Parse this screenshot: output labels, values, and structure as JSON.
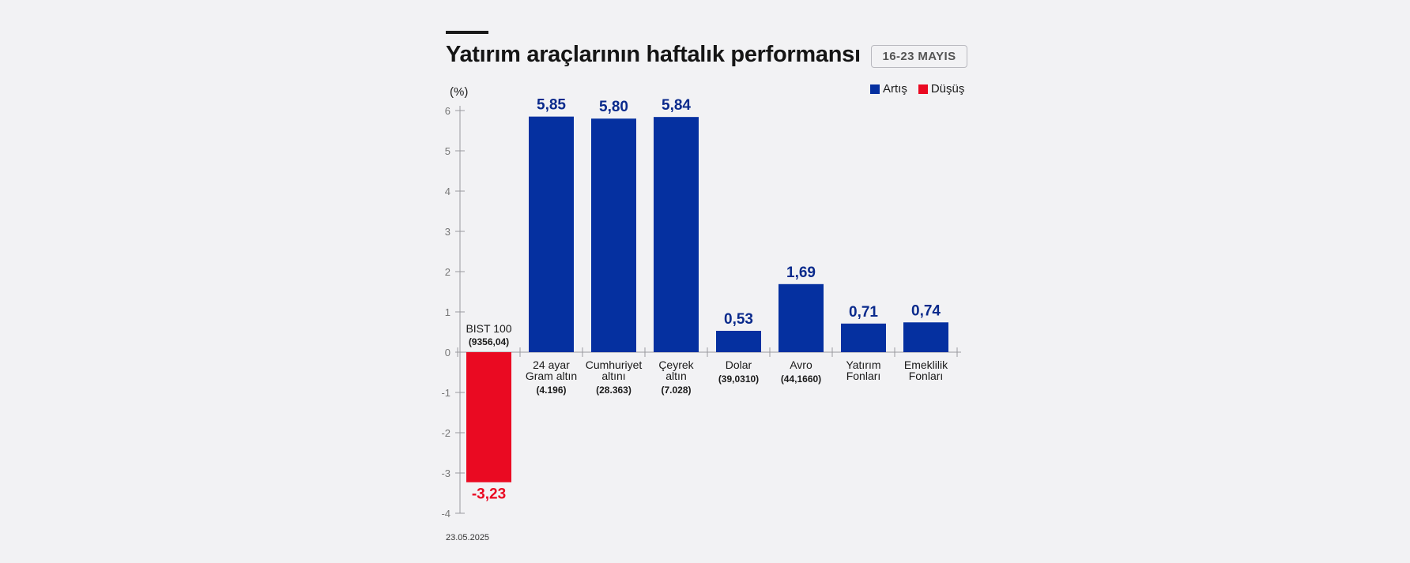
{
  "header": {
    "title": "Yatırım araçlarının haftalık performansı",
    "date_range": "16-23 MAYIS"
  },
  "legend": [
    {
      "label": "Artış",
      "color": "#0530a0"
    },
    {
      "label": "Düşüş",
      "color": "#ea0a22"
    }
  ],
  "unit_label": "(%)",
  "footer": {
    "date": "23.05.2025"
  },
  "colors": {
    "increase": "#0530a0",
    "decrease": "#ea0a22",
    "axis": "#9a9a9f",
    "increase_label": "#0a2a8c"
  },
  "chart_data": {
    "type": "bar",
    "ylim": [
      -4,
      6
    ],
    "yticks": [
      6,
      5,
      4,
      3,
      2,
      1,
      0,
      -1,
      -2,
      -3,
      -4
    ],
    "grid": false,
    "legend_position": "top-right",
    "categories": [
      {
        "name": "BIST 100",
        "sub": "(9356,04)",
        "value": -3.23,
        "label": "-3,23"
      },
      {
        "name": "24 ayar Gram altın",
        "sub": "(4.196)",
        "value": 5.85,
        "label": "5,85"
      },
      {
        "name": "Cumhuriyet altını",
        "sub": "(28.363)",
        "value": 5.8,
        "label": "5,80"
      },
      {
        "name": "Çeyrek altın",
        "sub": "(7.028)",
        "value": 5.84,
        "label": "5,84"
      },
      {
        "name": "Dolar",
        "sub": "(39,0310)",
        "value": 0.53,
        "label": "0,53"
      },
      {
        "name": "Avro",
        "sub": "(44,1660)",
        "value": 1.69,
        "label": "1,69"
      },
      {
        "name": "Yatırım Fonları",
        "sub": "",
        "value": 0.71,
        "label": "0,71"
      },
      {
        "name": "Emeklilik Fonları",
        "sub": "",
        "value": 0.74,
        "label": "0,74"
      }
    ]
  }
}
